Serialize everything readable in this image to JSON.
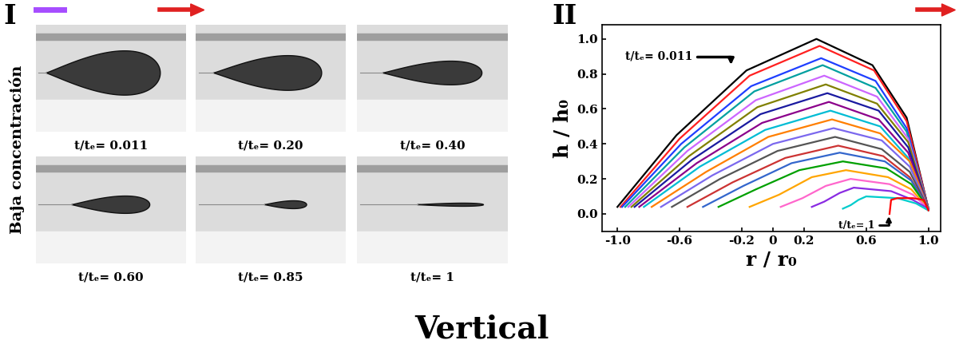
{
  "panel_labels": [
    "I",
    "II"
  ],
  "caption": "Vertical",
  "photo_panel": {
    "row_label": "Baja concentración",
    "frames": [
      "t/tₑ= 0.011",
      "t/tₑ= 0.20",
      "t/tₑ= 0.40",
      "t/tₑ= 0.60",
      "t/tₑ= 0.85",
      "t/tₑ= 1"
    ]
  },
  "chart_data": {
    "type": "line",
    "x_label": "r / r₀",
    "y_label": "h / h₀",
    "xlim": [
      -1.1,
      1.08
    ],
    "ylim": [
      -0.1,
      1.08
    ],
    "xticks": [
      {
        "value": -1.0,
        "label": "-1.0"
      },
      {
        "value": -0.6,
        "label": "-0.6"
      },
      {
        "value": -0.2,
        "label": "-0.2"
      },
      0,
      0.2,
      0.6,
      {
        "value": 1.0,
        "label": "1.0"
      }
    ],
    "yticks": [
      {
        "value": 0.0,
        "label": "0.0"
      },
      0.2,
      0.4,
      0.6,
      0.8,
      {
        "value": 1.0,
        "label": "1.0"
      }
    ],
    "annotations": [
      "t/tₑ= 0.011",
      "t/tₑ= 1"
    ],
    "series": [
      {
        "color": "#000000",
        "x": [
          -1.0,
          -0.62,
          -0.17,
          0.28,
          0.64,
          0.86,
          1.0
        ],
        "values": [
          0.04,
          0.45,
          0.82,
          1.0,
          0.85,
          0.55,
          0.03
        ]
      },
      {
        "color": "#ff2020",
        "x": [
          -0.98,
          -0.6,
          -0.15,
          0.3,
          0.65,
          0.86,
          1.0
        ],
        "values": [
          0.04,
          0.43,
          0.79,
          0.96,
          0.82,
          0.53,
          0.03
        ]
      },
      {
        "color": "#1f3fff",
        "x": [
          -0.97,
          -0.59,
          -0.14,
          0.31,
          0.66,
          0.86,
          1.0
        ],
        "values": [
          0.04,
          0.4,
          0.73,
          0.89,
          0.76,
          0.49,
          0.03
        ]
      },
      {
        "color": "#00a0a0",
        "x": [
          -0.95,
          -0.57,
          -0.12,
          0.32,
          0.66,
          0.86,
          1.0
        ],
        "values": [
          0.04,
          0.38,
          0.7,
          0.85,
          0.72,
          0.47,
          0.03
        ]
      },
      {
        "color": "#cc66ff",
        "x": [
          -0.93,
          -0.55,
          -0.11,
          0.33,
          0.67,
          0.87,
          1.0
        ],
        "values": [
          0.04,
          0.36,
          0.65,
          0.79,
          0.67,
          0.43,
          0.03
        ]
      },
      {
        "color": "#808000",
        "x": [
          -0.91,
          -0.54,
          -0.1,
          0.34,
          0.67,
          0.87,
          1.0
        ],
        "values": [
          0.04,
          0.33,
          0.61,
          0.74,
          0.63,
          0.41,
          0.03
        ]
      },
      {
        "color": "#1a1aa0",
        "x": [
          -0.89,
          -0.52,
          -0.08,
          0.35,
          0.68,
          0.87,
          1.0
        ],
        "values": [
          0.04,
          0.31,
          0.57,
          0.69,
          0.59,
          0.38,
          0.03
        ]
      },
      {
        "color": "#8b008b",
        "x": [
          -0.86,
          -0.49,
          -0.07,
          0.36,
          0.68,
          0.87,
          1.0
        ],
        "values": [
          0.04,
          0.29,
          0.52,
          0.64,
          0.54,
          0.35,
          0.03
        ]
      },
      {
        "color": "#00bcd4",
        "x": [
          -0.83,
          -0.47,
          -0.05,
          0.37,
          0.69,
          0.87,
          1.0
        ],
        "values": [
          0.04,
          0.27,
          0.48,
          0.59,
          0.5,
          0.32,
          0.03
        ]
      },
      {
        "color": "#ff7f00",
        "x": [
          -0.78,
          -0.43,
          -0.03,
          0.38,
          0.69,
          0.88,
          1.0
        ],
        "values": [
          0.04,
          0.24,
          0.44,
          0.54,
          0.46,
          0.3,
          0.03
        ]
      },
      {
        "color": "#7b68ee",
        "x": [
          -0.72,
          -0.39,
          0.0,
          0.39,
          0.7,
          0.88,
          1.0
        ],
        "values": [
          0.04,
          0.22,
          0.4,
          0.49,
          0.42,
          0.27,
          0.03
        ]
      },
      {
        "color": "#555555",
        "x": [
          -0.65,
          -0.34,
          0.03,
          0.4,
          0.7,
          0.88,
          1.0
        ],
        "values": [
          0.04,
          0.2,
          0.36,
          0.44,
          0.37,
          0.24,
          0.03
        ]
      },
      {
        "color": "#cc3333",
        "x": [
          -0.55,
          -0.26,
          0.08,
          0.42,
          0.71,
          0.88,
          1.0
        ],
        "values": [
          0.04,
          0.18,
          0.32,
          0.39,
          0.33,
          0.21,
          0.03
        ]
      },
      {
        "color": "#3366cc",
        "x": [
          -0.45,
          -0.19,
          0.12,
          0.43,
          0.72,
          0.89,
          1.0
        ],
        "values": [
          0.04,
          0.16,
          0.29,
          0.35,
          0.3,
          0.19,
          0.03
        ]
      },
      {
        "color": "#00a000",
        "x": [
          -0.35,
          -0.11,
          0.17,
          0.45,
          0.73,
          0.89,
          1.0
        ],
        "values": [
          0.04,
          0.14,
          0.25,
          0.3,
          0.26,
          0.17,
          0.03
        ]
      },
      {
        "color": "#ffa500",
        "x": [
          -0.15,
          0.04,
          0.25,
          0.47,
          0.74,
          0.89,
          1.0
        ],
        "values": [
          0.04,
          0.11,
          0.21,
          0.25,
          0.21,
          0.14,
          0.03
        ]
      },
      {
        "color": "#ff66cc",
        "x": [
          0.05,
          0.19,
          0.34,
          0.5,
          0.75,
          0.9,
          1.0
        ],
        "values": [
          0.04,
          0.09,
          0.16,
          0.2,
          0.17,
          0.11,
          0.03
        ]
      },
      {
        "color": "#8a2be2",
        "x": [
          0.25,
          0.33,
          0.43,
          0.52,
          0.76,
          0.9,
          1.0
        ],
        "values": [
          0.04,
          0.07,
          0.12,
          0.15,
          0.13,
          0.08,
          0.03
        ]
      },
      {
        "color": "#00cccc",
        "x": [
          0.45,
          0.5,
          0.55,
          0.6,
          0.8,
          0.92,
          1.0
        ],
        "values": [
          0.03,
          0.05,
          0.08,
          0.1,
          0.09,
          0.06,
          0.02
        ]
      },
      {
        "color": "#ff0000",
        "x": [
          0.75,
          0.76,
          0.8,
          0.9,
          0.97,
          1.0
        ],
        "values": [
          0.0,
          0.08,
          0.09,
          0.09,
          0.08,
          0.02
        ]
      }
    ]
  }
}
